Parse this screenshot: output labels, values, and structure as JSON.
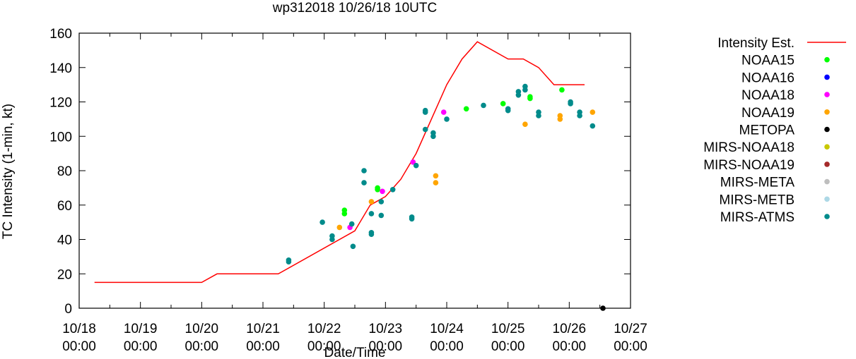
{
  "chart_data": {
    "type": "scatter",
    "title": "wp312018 10/26/18 10UTC",
    "xlabel": "Date/Time",
    "ylabel": "TC Intensity (1-min, kt)",
    "xlim": [
      0,
      9
    ],
    "ylim": [
      0,
      160
    ],
    "x_unit": "days since 10/18 00:00",
    "x_ticks": [
      {
        "v": 0,
        "l1": "10/18",
        "l2": "00:00"
      },
      {
        "v": 1,
        "l1": "10/19",
        "l2": "00:00"
      },
      {
        "v": 2,
        "l1": "10/20",
        "l2": "00:00"
      },
      {
        "v": 3,
        "l1": "10/21",
        "l2": "00:00"
      },
      {
        "v": 4,
        "l1": "10/22",
        "l2": "00:00"
      },
      {
        "v": 5,
        "l1": "10/23",
        "l2": "00:00"
      },
      {
        "v": 6,
        "l1": "10/24",
        "l2": "00:00"
      },
      {
        "v": 7,
        "l1": "10/25",
        "l2": "00:00"
      },
      {
        "v": 8,
        "l1": "10/26",
        "l2": "00:00"
      },
      {
        "v": 9,
        "l1": "10/27",
        "l2": "00:00"
      }
    ],
    "y_ticks": [
      "0",
      "20",
      "40",
      "60",
      "80",
      "100",
      "120",
      "140",
      "160"
    ],
    "intensity_est": {
      "name": "Intensity Est.",
      "color": "#ff0000",
      "x": [
        0.25,
        2.0,
        2.25,
        3.25,
        4.5,
        4.75,
        5.0,
        5.25,
        5.5,
        6.0,
        6.25,
        6.5,
        7.0,
        7.25,
        7.5,
        7.75,
        8.25
      ],
      "y": [
        15,
        15,
        20,
        20,
        45,
        60,
        65,
        75,
        90,
        130,
        145,
        155,
        145,
        145,
        140,
        130,
        130
      ]
    },
    "series": [
      {
        "name": "NOAA15",
        "color": "#00ff00",
        "x": [
          4.33,
          4.33,
          4.87,
          4.87,
          6.32,
          6.92,
          7.36,
          7.36,
          7.88
        ],
        "y": [
          57,
          55,
          70,
          69,
          116,
          119,
          123,
          122,
          127
        ]
      },
      {
        "name": "NOAA16",
        "color": "#0000ff",
        "x": [],
        "y": []
      },
      {
        "name": "NOAA18",
        "color": "#ff00ff",
        "x": [
          4.42,
          4.95,
          5.45,
          5.95
        ],
        "y": [
          47,
          68,
          85,
          114
        ]
      },
      {
        "name": "NOAA19",
        "color": "#ffa500",
        "x": [
          4.25,
          4.77,
          5.82,
          5.82,
          7.28,
          7.85,
          7.85,
          8.38
        ],
        "y": [
          47,
          62,
          77,
          73,
          107,
          112,
          110,
          114
        ]
      },
      {
        "name": "METOPA",
        "color": "#000000",
        "x": [
          8.55
        ],
        "y": [
          0
        ]
      },
      {
        "name": "MIRS-NOAA18",
        "color": "#c8c800",
        "x": [],
        "y": []
      },
      {
        "name": "MIRS-NOAA19",
        "color": "#a52a2a",
        "x": [],
        "y": []
      },
      {
        "name": "MIRS-META",
        "color": "#bebebe",
        "x": [],
        "y": []
      },
      {
        "name": "MIRS-METB",
        "color": "#add8e6",
        "x": [],
        "y": []
      },
      {
        "name": "MIRS-ATMS",
        "color": "#008b8b",
        "x": [
          3.42,
          3.42,
          3.97,
          4.13,
          4.13,
          4.45,
          4.47,
          4.65,
          4.65,
          4.77,
          4.77,
          4.77,
          4.93,
          4.93,
          5.12,
          5.43,
          5.43,
          5.5,
          5.65,
          5.65,
          5.65,
          5.78,
          5.78,
          6.0,
          6.6,
          7.0,
          7.0,
          7.17,
          7.17,
          7.28,
          7.28,
          7.5,
          7.5,
          8.02,
          8.02,
          8.17,
          8.17,
          8.38
        ],
        "y": [
          28,
          27,
          50,
          42,
          40,
          49,
          36,
          80,
          73,
          55,
          44,
          43,
          62,
          54,
          69,
          53,
          52,
          83,
          115,
          114,
          104,
          102,
          100,
          110,
          118,
          116,
          115,
          126,
          124,
          129,
          127,
          114,
          112,
          120,
          119,
          114,
          112,
          106
        ]
      }
    ]
  }
}
